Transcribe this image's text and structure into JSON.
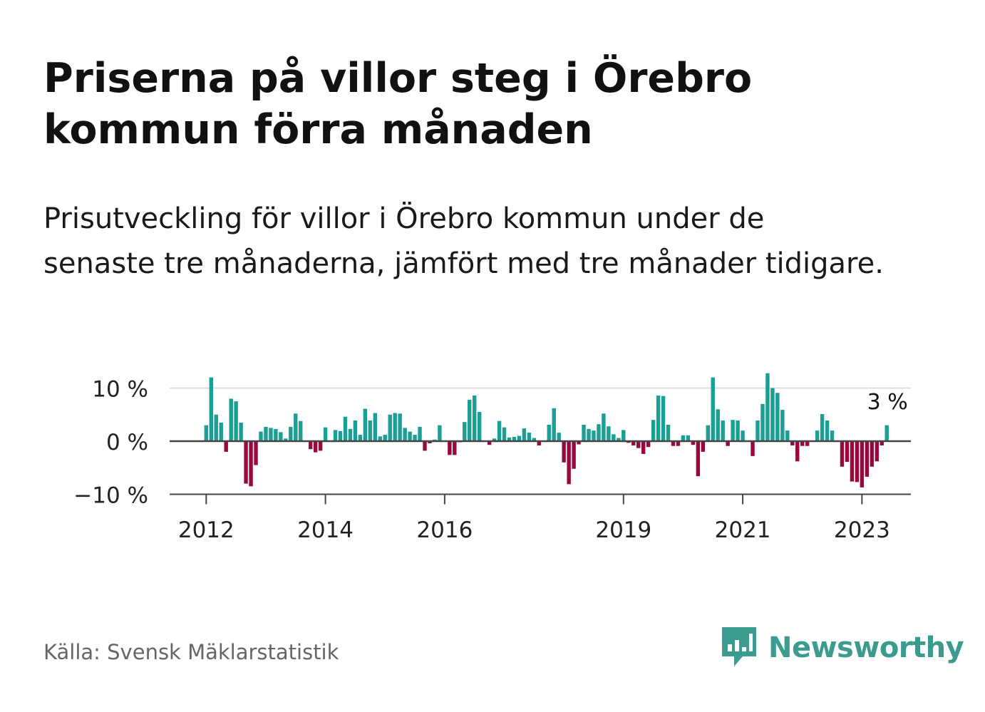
{
  "header": {
    "title": "Priserna på villor steg i Örebro kommun förra månaden",
    "subtitle": "Prisutveckling för villor i Örebro kommun under de senaste tre månaderna, jämfört med tre månader tidigare."
  },
  "footer": {
    "source": "Källa: Svensk Mäklarstatistik",
    "brand": "Newsworthy",
    "brand_icon": "bar-chart-speech-bubble-icon"
  },
  "colors": {
    "positive": "#1a9e95",
    "negative": "#99073e",
    "axis": "#444444",
    "grid": "#dddddd",
    "brand": "#3a9b8e"
  },
  "chart_data": {
    "type": "bar",
    "title": "",
    "xlabel": "",
    "ylabel": "",
    "ylim": [
      -10,
      10
    ],
    "yticks": [
      -10,
      0,
      10
    ],
    "ytick_labels": [
      "−10 %",
      "0 %",
      "10 %"
    ],
    "xtick_labels": [
      "2012",
      "2014",
      "2016",
      "2019",
      "2021",
      "2023"
    ],
    "xtick_dates": [
      "2012-01",
      "2014-01",
      "2016-01",
      "2019-01",
      "2021-01",
      "2023-01"
    ],
    "start": "2011-07",
    "last_label": "3 %",
    "grid": true,
    "values": [
      0,
      0,
      0,
      0,
      0,
      0,
      3,
      12,
      5,
      3.5,
      -2,
      8,
      7.5,
      3.5,
      -8,
      -8.5,
      -4.5,
      1.8,
      2.7,
      2.5,
      2.3,
      1.7,
      0.5,
      2.7,
      5.2,
      3.8,
      0,
      -1.5,
      -2.1,
      -1.8,
      2.6,
      0,
      2.1,
      1.9,
      4.6,
      2.3,
      3.9,
      1.2,
      6.1,
      3.9,
      5.3,
      0.9,
      1.2,
      5,
      5.3,
      5.2,
      2.5,
      1.8,
      1.2,
      2.7,
      -1.8,
      -0.4,
      0.3,
      3,
      0,
      -2.6,
      -2.6,
      -0.2,
      3.6,
      7.8,
      8.6,
      5.5,
      0,
      -0.7,
      0.5,
      3.8,
      2.6,
      0.7,
      0.8,
      1,
      2.4,
      1.6,
      0.6,
      -0.8,
      0,
      3.1,
      6.2,
      1.6,
      -4,
      -8.1,
      -5.2,
      -0.6,
      3.1,
      2.3,
      2,
      3.2,
      5.2,
      2.8,
      1.3,
      0.6,
      2.1,
      -0.3,
      -0.8,
      -1.3,
      -2.4,
      -1.1,
      4,
      8.6,
      8.5,
      3.1,
      -0.9,
      -0.9,
      1.1,
      1.1,
      -0.7,
      -6.6,
      -2,
      3,
      12,
      6,
      3.9,
      -0.9,
      4,
      3.9,
      2,
      0,
      -2.8,
      3.9,
      7,
      12.8,
      10,
      9.1,
      5.9,
      2,
      -0.8,
      -3.8,
      -0.9,
      -0.9,
      0,
      2,
      5.1,
      3.9,
      2,
      0,
      -4.8,
      -3.9,
      -7.6,
      -7.7,
      -8.7,
      -6.7,
      -4.8,
      -3.8,
      -0.8,
      3
    ]
  }
}
